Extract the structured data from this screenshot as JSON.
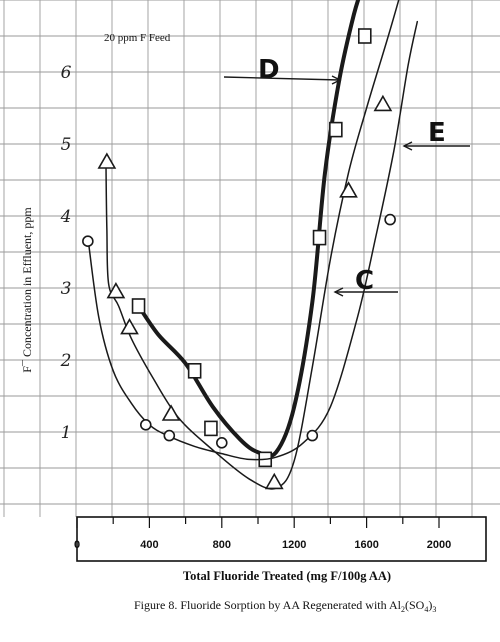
{
  "chart_data": {
    "type": "line",
    "title": "",
    "feed_label": "20 ppm F Feed",
    "xlabel": "Total Fluoride Treated (mg F/100g AA)",
    "ylabel": "F¯ Concentration in Effluent, ppm",
    "caption_prefix": "Figure 8. Fluoride Sorption by AA Regenerated with Al",
    "caption_sub1": "2",
    "caption_mid": "(SO",
    "caption_sub2": "4",
    "caption_close": ")",
    "caption_sub3": "3",
    "xlim": [
      -50,
      2250
    ],
    "ylim": [
      0,
      6.6
    ],
    "x_ticks": [
      "0",
      "400",
      "800",
      "1200",
      "1600",
      "2000"
    ],
    "x_tick_values": [
      0,
      400,
      800,
      1200,
      1600,
      2000
    ],
    "y_ticks": [
      "1",
      "2",
      "3",
      "4",
      "5",
      "6"
    ],
    "y_tick_values": [
      1,
      2,
      3,
      4,
      5,
      6
    ],
    "grid": true,
    "annotations": [
      "D",
      "E",
      "C"
    ],
    "series": [
      {
        "name": "D",
        "marker": "square",
        "line_weight": "heavy",
        "curve_x": [
          340,
          450,
          600,
          750,
          900,
          1000,
          1100,
          1200,
          1300,
          1370,
          1450,
          1530,
          1580
        ],
        "curve_y": [
          2.75,
          2.35,
          1.95,
          1.35,
          0.9,
          0.72,
          0.72,
          1.35,
          2.8,
          4.6,
          5.9,
          6.8,
          7.2
        ],
        "points_x": [
          340,
          650,
          740,
          1040,
          1340,
          1430,
          1590
        ],
        "points_y": [
          2.75,
          1.85,
          1.05,
          0.62,
          3.7,
          5.2,
          6.5
        ]
      },
      {
        "name": "C",
        "marker": "triangle",
        "line_weight": "light",
        "curve_x": [
          160,
          165,
          175,
          230,
          300,
          420,
          560,
          750,
          950,
          1100,
          1200,
          1300,
          1400,
          1500,
          1600,
          1720,
          1800
        ],
        "curve_y": [
          4.7,
          3.8,
          3.05,
          2.75,
          2.3,
          1.75,
          1.2,
          0.75,
          0.35,
          0.22,
          0.6,
          1.9,
          3.4,
          4.6,
          5.5,
          6.5,
          7.2
        ],
        "points_x": [
          165,
          215,
          290,
          520,
          1090,
          1500,
          1690
        ],
        "points_y": [
          4.75,
          2.95,
          2.45,
          1.25,
          0.3,
          4.35,
          5.55
        ]
      },
      {
        "name": "E",
        "marker": "circle",
        "line_weight": "light",
        "curve_x": [
          60,
          120,
          200,
          300,
          400,
          500,
          650,
          800,
          950,
          1100,
          1250,
          1400,
          1550,
          1650,
          1750,
          1830,
          1880
        ],
        "curve_y": [
          3.7,
          2.6,
          1.85,
          1.4,
          1.1,
          0.95,
          0.8,
          0.7,
          0.62,
          0.65,
          0.85,
          1.35,
          2.6,
          3.7,
          4.9,
          6.1,
          6.7
        ],
        "points_x": [
          60,
          380,
          510,
          800,
          1300,
          1730
        ],
        "points_y": [
          3.65,
          1.1,
          0.95,
          0.85,
          0.95,
          3.95
        ]
      }
    ]
  }
}
